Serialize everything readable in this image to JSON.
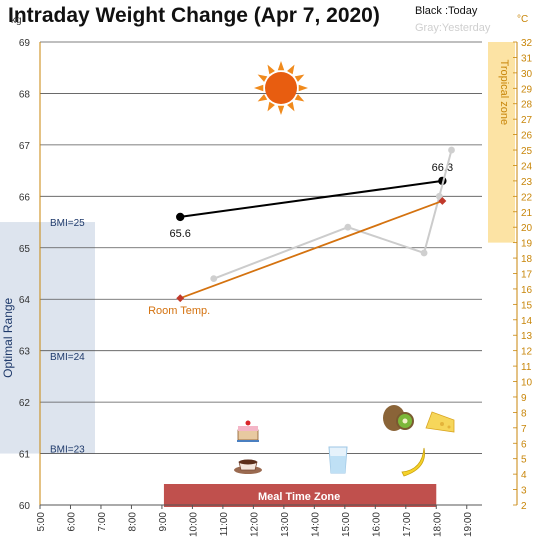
{
  "chart_data": {
    "type": "line",
    "title": "Intraday Weight Change (Apr 7, 2020)",
    "legend": {
      "today": "Black :Today",
      "yesterday": "Gray:Yesterday",
      "placement": "top-right"
    },
    "y_left": {
      "unit": "kg",
      "range": [
        60,
        69
      ],
      "ticks": [
        60,
        61,
        62,
        63,
        64,
        65,
        66,
        67,
        68,
        69
      ]
    },
    "y_right": {
      "unit": "°C",
      "range": [
        2,
        32
      ],
      "ticks": [
        2,
        3,
        4,
        5,
        6,
        7,
        8,
        9,
        10,
        11,
        12,
        13,
        14,
        15,
        16,
        17,
        18,
        19,
        20,
        21,
        22,
        23,
        24,
        25,
        26,
        27,
        28,
        29,
        30,
        31,
        32
      ]
    },
    "x": {
      "range": [
        5,
        19.5
      ],
      "ticks": [
        "5:00",
        "6:00",
        "7:00",
        "8:00",
        "9:00",
        "10:00",
        "11:00",
        "12:00",
        "13:00",
        "14:00",
        "15:00",
        "16:00",
        "17:00",
        "18:00",
        "19:00"
      ]
    },
    "grid": true,
    "series": [
      {
        "name": "Today",
        "color": "#000000",
        "unit": "kg",
        "points": [
          {
            "x": 9.6,
            "y": 65.6,
            "label": "65.6"
          },
          {
            "x": 18.2,
            "y": 66.3,
            "label": "66.3"
          }
        ]
      },
      {
        "name": "Yesterday",
        "color": "#cccccc",
        "unit": "kg",
        "points": [
          {
            "x": 10.7,
            "y": 64.4
          },
          {
            "x": 15.1,
            "y": 65.4
          },
          {
            "x": 17.6,
            "y": 64.9
          },
          {
            "x": 18.1,
            "y": 66.0
          },
          {
            "x": 18.5,
            "y": 66.9
          }
        ]
      },
      {
        "name": "Room Temp.",
        "color": "#d4720f",
        "unit": "°C",
        "points": [
          {
            "x": 9.6,
            "y": 15.4
          },
          {
            "x": 18.2,
            "y": 21.7
          }
        ]
      }
    ],
    "bands": {
      "optimal": {
        "label": "Optimal Range",
        "from": 61,
        "to": 65.5,
        "color": "#dde4ee"
      },
      "bmi": [
        {
          "label": "BMI=25",
          "y": 65.5
        },
        {
          "label": "BMI=24",
          "y": 62.9
        },
        {
          "label": "BMI=23",
          "y": 61.1
        }
      ],
      "tropical": {
        "label": "Tropical zone",
        "from": 19,
        "to": 32,
        "color": "#fce3a4"
      },
      "meal": {
        "label": "Meal Time Zone",
        "from": 9,
        "to": 18,
        "color": "#c0504d"
      }
    },
    "annotations": {
      "room_temp_label": "Room Temp."
    },
    "icons": [
      "sun-icon",
      "cake-icon",
      "coffee-icon",
      "water-glass-icon",
      "kiwi-icon",
      "cheese-icon",
      "banana-icon"
    ]
  }
}
